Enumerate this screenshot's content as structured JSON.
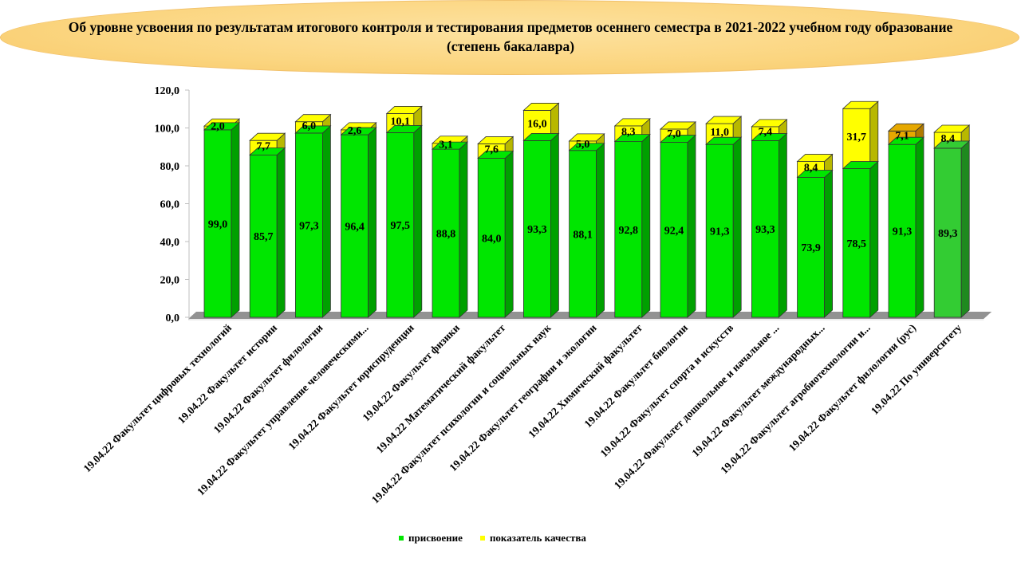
{
  "page": {
    "title": "Об уровне  усвоения  по результатам  итогового контроля и тестирования  предметов  осеннего  семестра  в 2021-2022 учебном году образование  (степень  бакалавра)"
  },
  "colors": {
    "assimilation": "#00e600",
    "assimilation_dark": "#00a000",
    "quality": "#ffff00",
    "quality_dark": "#b8b800",
    "quality_alt": "#e6a800",
    "quality_alt_dark": "#b07a00",
    "university": "#33cc33",
    "university_dark": "#1f8a1f",
    "floor": "#7f7f7f"
  },
  "chart_data": {
    "type": "bar",
    "stacked": true,
    "title": "Об уровне  усвоения  по результатам  итогового контроля и тестирования  предметов  осеннего  семестра  в 2021-2022 учебном году образование  (степень  бакалавра)",
    "categories": [
      "19.04.22 Факультет цифровых технологий",
      "19.04.22 Факультет истории",
      "19.04.22 Факультет филологии",
      "19.04.22 Факультет управление человеческими...",
      "19.04.22 Факультет юриспруденции",
      "19.04.22 Факультет физики",
      "19.04.22 Математический факультет",
      "19.04.22 Факультет психологии и социальных наук",
      "19.04.22 Факультет географии и экологии",
      "19.04.22 Химический факультет",
      "19.04.22 Факультет биологии",
      "19.04.22 Факультет спорта и искусств",
      "19.04.22 Факультет дошкольное и начальное ...",
      "19.04.22 Факультет международных...",
      "19.04.22 Факультет агробиотехнологии и...",
      "19.04.22 Факультет филологии (рус)",
      "19.04.22 По университету"
    ],
    "series": [
      {
        "name": "присвоение",
        "values": [
          99.0,
          85.7,
          97.3,
          96.4,
          97.5,
          88.8,
          84.0,
          93.3,
          88.1,
          92.8,
          92.4,
          91.3,
          93.3,
          73.9,
          78.5,
          91.3,
          89.3
        ],
        "labels": [
          "99,0",
          "85,7",
          "97,3",
          "96,4",
          "97,5",
          "88,8",
          "84,0",
          "93,3",
          "88,1",
          "92,8",
          "92,4",
          "91,3",
          "93,3",
          "73,9",
          "78,5",
          "91,3",
          "89,3"
        ]
      },
      {
        "name": "показатель качества",
        "values": [
          2.0,
          7.7,
          6.0,
          2.6,
          10.1,
          3.1,
          7.6,
          16.0,
          5.0,
          8.3,
          7.0,
          11.0,
          7.4,
          8.4,
          31.7,
          7.1,
          8.4
        ],
        "labels": [
          "2,0",
          "7,7",
          "6,0",
          "2,6",
          "10,1",
          "3,1",
          "7,6",
          "16,0",
          "5,0",
          "8,3",
          "7,0",
          "11,0",
          "7,4",
          "8,4",
          "31,7",
          "7,1",
          "8,4"
        ]
      }
    ],
    "y_ticks": [
      "0,0",
      "20,0",
      "40,0",
      "60,0",
      "80,0",
      "100,0",
      "120,0"
    ],
    "y_tick_values": [
      0,
      20,
      40,
      60,
      80,
      100,
      120
    ],
    "ylim": [
      0,
      120
    ],
    "grid": false,
    "legend_position": "bottom",
    "style": "3d-column"
  }
}
